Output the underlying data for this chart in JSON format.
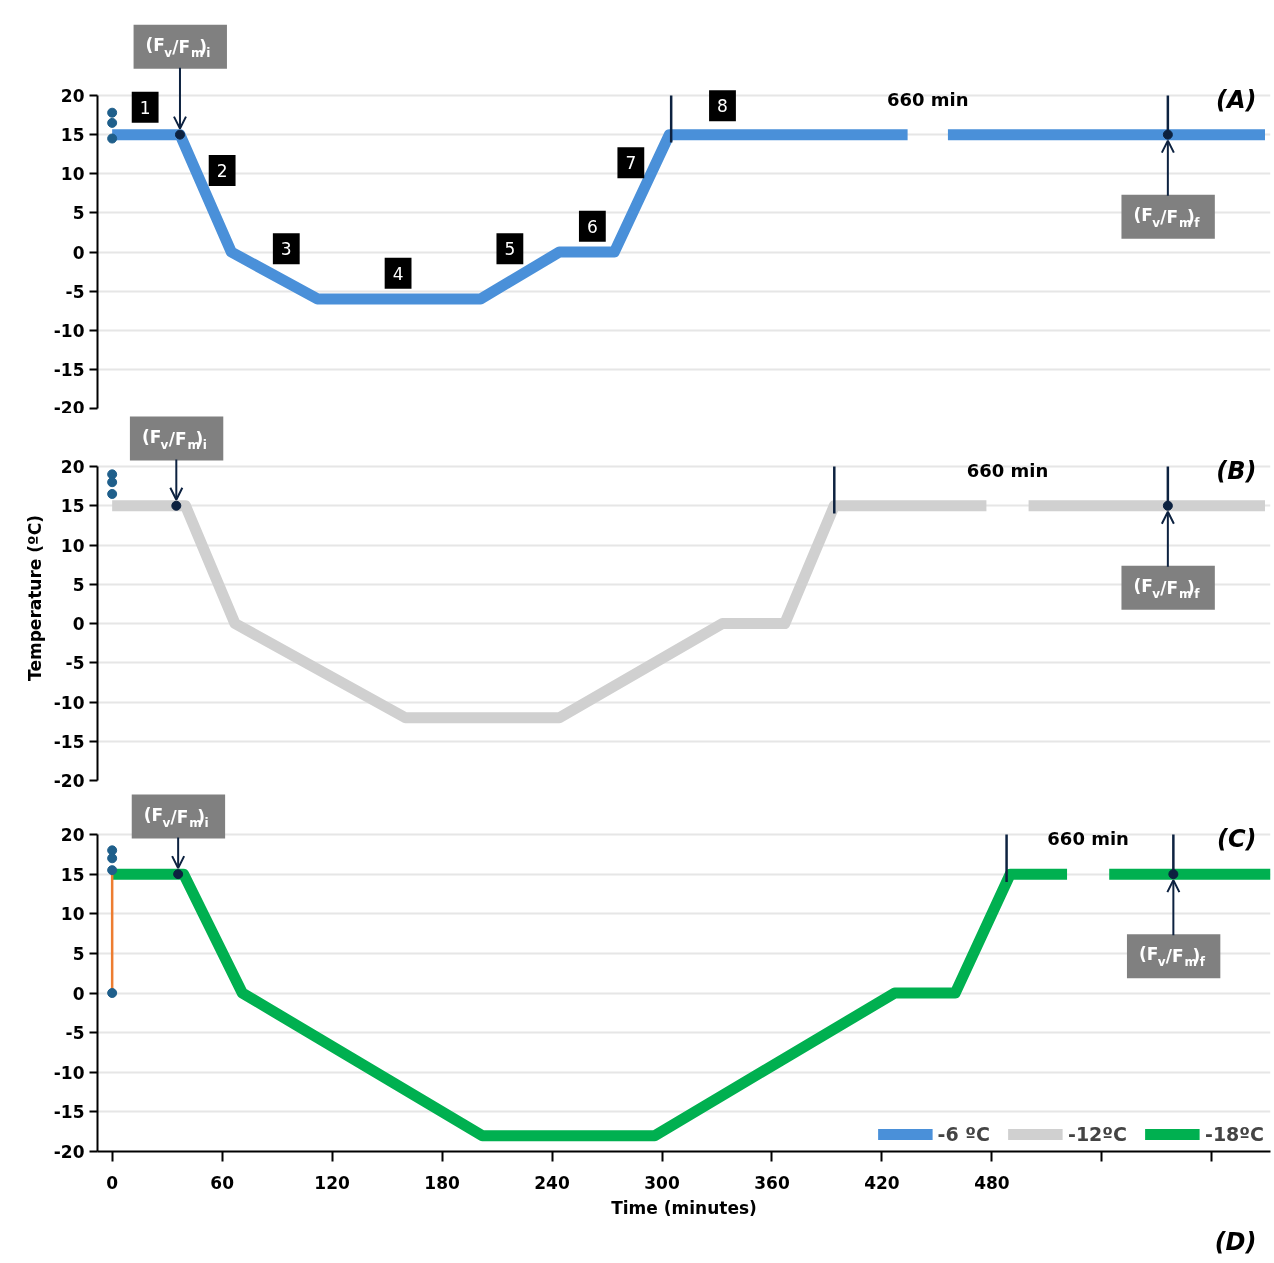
{
  "chart_data": [
    {
      "type": "line",
      "xlim": [
        -8,
        632
      ],
      "ylim": [
        -20,
        20
      ],
      "yticks": [
        -20,
        -15,
        -10,
        -5,
        0,
        5,
        10,
        15,
        20
      ],
      "grid": "y",
      "tick_labels": "y",
      "series": [
        {
          "name": "-6 ºC",
          "color": "#4a90d9",
          "x": [
            0,
            37,
            65,
            112,
            201,
            244,
            274,
            304,
            434,
            445,
            456,
            629
          ],
          "values": [
            15,
            15,
            0,
            -6,
            -6,
            0,
            0,
            15,
            15,
            null,
            15,
            15
          ]
        },
        {
          "type": "scatter",
          "color": "#1f5f8b",
          "x": [
            0,
            0,
            0
          ],
          "values": [
            17.8,
            16.5,
            14.5
          ]
        },
        {
          "type": "scatter",
          "color": "#0d2240",
          "x": [
            37,
            576
          ],
          "values": [
            15,
            15
          ]
        },
        {
          "type": "line",
          "color": "#0d2240",
          "x": [
            305,
            305,
            440,
            576,
            576
          ],
          "values": [
            14,
            20,
            null,
            15,
            20
          ]
        }
      ],
      "annotations": [
        {
          "text": "(F$_{v}$/F$_{m}$)$_{i}$",
          "x": 37,
          "y": 15
        },
        {
          "text": "(F$_{v}$/F$_{m}$)$_{f}$",
          "x": 576,
          "y": 15
        },
        {
          "text": "1",
          "x": 18,
          "y": 18.5
        },
        {
          "text": "2",
          "x": 60,
          "y": 10.4
        },
        {
          "text": "3",
          "x": 95,
          "y": 0.4
        },
        {
          "text": "4",
          "x": 156,
          "y": -2.7
        },
        {
          "text": "5",
          "x": 217,
          "y": 0.4
        },
        {
          "text": "6",
          "x": 262,
          "y": 3.3
        },
        {
          "text": "7",
          "x": 283,
          "y": 11.4
        },
        {
          "text": "8",
          "x": 333,
          "y": 18.7
        },
        "660 min",
        "(A)"
      ]
    },
    {
      "type": "line",
      "xlim": [
        -8,
        632
      ],
      "ylim": [
        -20,
        20
      ],
      "yticks": [
        -20,
        -15,
        -10,
        -5,
        0,
        5,
        10,
        15,
        20
      ],
      "grid": "y",
      "tick_labels": "y",
      "ylabel": "Temperature (ºC)",
      "series": [
        {
          "name": "-12ºC",
          "color": "#d0d0d0",
          "x": [
            0,
            40,
            67,
            160,
            244,
            333,
            367,
            394,
            477,
            488,
            500,
            629
          ],
          "values": [
            15,
            15,
            0,
            -12,
            -12,
            0,
            0,
            15,
            15,
            null,
            15,
            15
          ]
        },
        {
          "type": "scatter",
          "color": "#1f5f8b",
          "x": [
            0,
            0,
            0
          ],
          "values": [
            19,
            18,
            16.5
          ]
        },
        {
          "type": "scatter",
          "color": "#0d2240",
          "x": [
            35,
            576
          ],
          "values": [
            15,
            15
          ]
        },
        {
          "type": "line",
          "color": "#0d2240",
          "x": [
            394,
            394,
            480,
            576,
            576
          ],
          "values": [
            14,
            20,
            null,
            15,
            20
          ]
        }
      ],
      "annotations": [
        {
          "text": "(F$_{v}$/F$_{m}$)$_{i}$",
          "x": 35,
          "y": 15
        },
        {
          "text": "(F$_{v}$/F$_{m}$)$_{f}$",
          "x": 576,
          "y": 15
        },
        "660 min",
        "(B)"
      ]
    },
    {
      "type": "line",
      "xlim": [
        -8,
        632
      ],
      "ylim": [
        -20,
        20
      ],
      "yticks": [
        -20,
        -15,
        -10,
        -5,
        0,
        5,
        10,
        15,
        20
      ],
      "grid": "y",
      "xlabel": "Time (minutes)",
      "xticks": [
        0,
        60,
        120,
        180,
        240,
        300,
        360,
        420,
        480,
        {
          "value": 540,
          "label": null
        },
        {
          "value": 600,
          "label": null
        }
      ],
      "legend": "bottom right",
      "series": [
        {
          "name": "-18ºC",
          "color": "#00b050",
          "x": [
            0,
            39,
            71,
            202,
            296,
            427,
            460,
            490,
            521,
            532,
            544,
            632
          ],
          "values": [
            15,
            15,
            0,
            -18,
            -18,
            0,
            0,
            15,
            15,
            null,
            15,
            15
          ]
        },
        {
          "type": "line",
          "color": "#ed7d31",
          "x": [
            0,
            0
          ],
          "values": [
            0,
            15
          ]
        },
        {
          "type": "scatter",
          "color": "#1f5f8b",
          "x": [
            0,
            0,
            0,
            0
          ],
          "values": [
            18,
            17,
            15.5,
            0
          ]
        },
        {
          "type": "scatter",
          "color": "#0d2240",
          "x": [
            36,
            579
          ],
          "values": [
            15,
            15
          ]
        },
        {
          "type": "line",
          "color": "#0d2240",
          "x": [
            488,
            488,
            530,
            579,
            579
          ],
          "values": [
            14,
            20,
            null,
            15,
            20
          ]
        }
      ],
      "annotations": [
        {
          "text": "(F$_{v}$/F$_{m}$)$_{i}$",
          "x": 36,
          "y": 15
        },
        {
          "text": "(F$_{v}$/F$_{m}$)$_{f}$",
          "x": 579,
          "y": 15
        },
        "660 min",
        "(C)",
        "(D)"
      ]
    }
  ]
}
